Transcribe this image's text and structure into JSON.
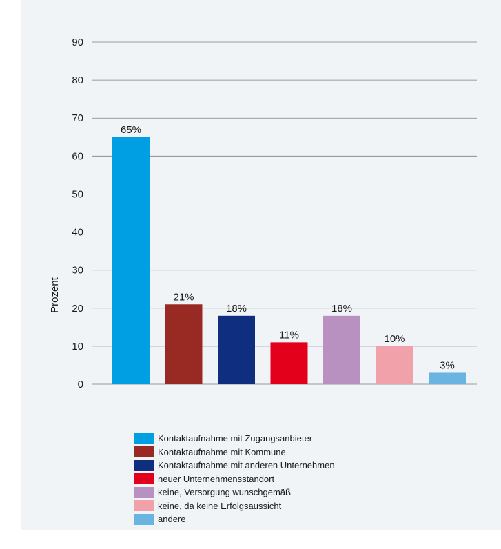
{
  "chart_data": {
    "type": "bar",
    "ylabel": "Prozent",
    "ylim": [
      0,
      90
    ],
    "yticks": [
      0,
      10,
      20,
      30,
      40,
      50,
      60,
      70,
      80,
      90
    ],
    "grid": true,
    "legend_position": "bottom",
    "categories": [
      "Kontaktaufnahme mit Zugangsanbieter",
      "Kontaktaufnahme mit Kommune",
      "Kontaktaufnahme mit anderen Unternehmen",
      "neuer Unternehmensstandort",
      "keine, Versorgung wunschgemäß",
      "keine, da keine Erfolgsaussicht",
      "andere"
    ],
    "values": [
      65,
      21,
      18,
      11,
      18,
      10,
      3
    ],
    "data_labels": [
      "65%",
      "21%",
      "18%",
      "11%",
      "18%",
      "10%",
      "3%"
    ],
    "colors": [
      "#009fe3",
      "#992a23",
      "#0f2e7f",
      "#e3001b",
      "#b991c0",
      "#f1a1aa",
      "#6ab4e2"
    ]
  }
}
